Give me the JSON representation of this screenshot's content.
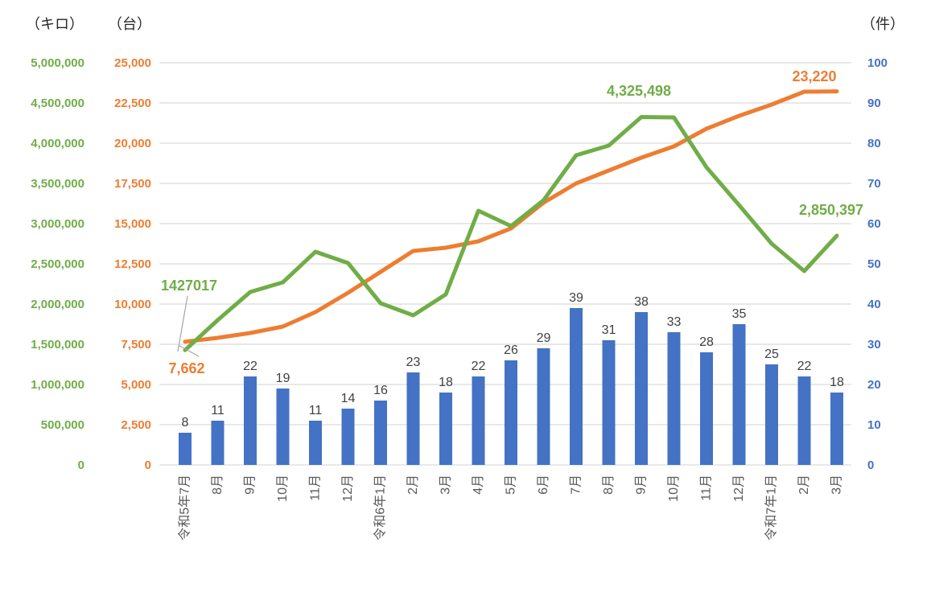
{
  "axis_titles": {
    "kilo": "（キロ）",
    "dai": "（台）",
    "ken": "（件）"
  },
  "colors": {
    "bar_blue": "#4472C4",
    "line_orange": "#ED7D31",
    "line_green": "#70AD47",
    "gridline": "#D9D9D9",
    "bar_value_label": "#404040",
    "x_axis_label": "#595959",
    "leader_line": "#A6A6A6",
    "axis_title_text": "#262626"
  },
  "chart_data": {
    "type": "combo",
    "legend": "none",
    "grid": true,
    "categories": [
      "令和5年7月",
      "8月",
      "9月",
      "10月",
      "11月",
      "12月",
      "令和6年1月",
      "2月",
      "3月",
      "4月",
      "5月",
      "6月",
      "7月",
      "8月",
      "9月",
      "10月",
      "11月",
      "12月",
      "令和7年1月",
      "2月",
      "3月"
    ],
    "axes": {
      "left_kilo": {
        "title": "（キロ）",
        "min": 0,
        "max": 5000000,
        "step": 500000,
        "color": "#70AD47"
      },
      "left_dai": {
        "title": "（台）",
        "min": 0,
        "max": 25000,
        "step": 2500,
        "color": "#ED7D31"
      },
      "right_ken": {
        "title": "（件）",
        "min": 0,
        "max": 100,
        "step": 10,
        "color": "#4472C4"
      }
    },
    "series": [
      {
        "name": "件",
        "type": "bar",
        "axis": "right_ken",
        "color": "#4472C4",
        "data_labels": true,
        "values": [
          8,
          11,
          22,
          19,
          11,
          14,
          16,
          23,
          18,
          22,
          26,
          29,
          39,
          31,
          38,
          33,
          28,
          35,
          25,
          22,
          18
        ]
      },
      {
        "name": "台",
        "type": "line",
        "axis": "left_dai",
        "color": "#ED7D31",
        "data_labels": false,
        "values": [
          7662,
          7900,
          8200,
          8600,
          9500,
          10700,
          12000,
          13300,
          13500,
          13900,
          14700,
          16300,
          17500,
          18300,
          19100,
          19800,
          20900,
          21700,
          22400,
          23200,
          23220
        ]
      },
      {
        "name": "キロ",
        "type": "line",
        "axis": "left_kilo",
        "color": "#70AD47",
        "data_labels": false,
        "values": [
          1427017,
          1800000,
          2150000,
          2270000,
          2650000,
          2510000,
          2010000,
          1860000,
          2120000,
          3160000,
          2970000,
          3290000,
          3850000,
          3970000,
          4325498,
          4320000,
          3700000,
          3230000,
          2750000,
          2410000,
          2850397
        ]
      }
    ],
    "annotations": [
      {
        "text": "1427017",
        "series": "キロ",
        "point": 0,
        "color": "#70AD47"
      },
      {
        "text": "7,662",
        "series": "台",
        "point": 0,
        "color": "#ED7D31"
      },
      {
        "text": "4,325,498",
        "series": "キロ",
        "point": 14,
        "color": "#70AD47"
      },
      {
        "text": "23,220",
        "series": "台",
        "point": 20,
        "color": "#ED7D31"
      },
      {
        "text": "2,850,397",
        "series": "キロ",
        "point": 20,
        "color": "#70AD47"
      }
    ]
  }
}
